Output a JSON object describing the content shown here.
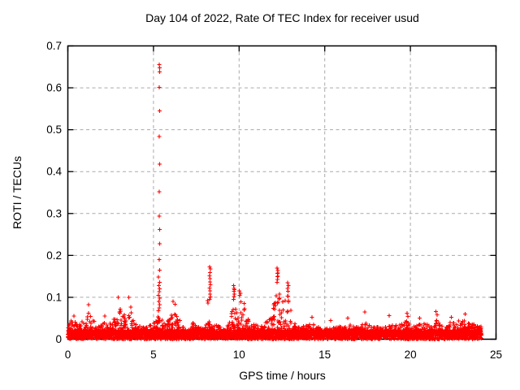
{
  "chart_data": {
    "type": "scatter",
    "title": "Day 104 of 2022, Rate Of TEC Index for receiver usud",
    "xlabel": "GPS time / hours",
    "ylabel": "ROTI / TECUs",
    "xlim": [
      0,
      25
    ],
    "ylim": [
      0,
      0.7
    ],
    "xticks": [
      0,
      5,
      10,
      15,
      20,
      25
    ],
    "yticks": [
      0,
      0.1,
      0.2,
      0.3,
      0.4,
      0.5,
      0.6,
      0.7
    ],
    "xtick_labels": [
      "0",
      "5",
      "10",
      "15",
      "20",
      "25"
    ],
    "ytick_labels": [
      "0",
      "0.1",
      "0.2",
      "0.3",
      "0.4",
      "0.5",
      "0.6",
      "0.7"
    ],
    "grid": true,
    "legend": "none",
    "marker": "plus",
    "marker_color": "#ff0000",
    "grid_color": "#aaaaaa",
    "axis_color": "#000000",
    "background_color": "#ffffff",
    "x_data_range": [
      0,
      24.15
    ],
    "band_envelope": [
      [
        0.0,
        0.035
      ],
      [
        0.3,
        0.05
      ],
      [
        0.6,
        0.032
      ],
      [
        0.9,
        0.045
      ],
      [
        1.1,
        0.06
      ],
      [
        1.25,
        0.078
      ],
      [
        1.45,
        0.055
      ],
      [
        1.7,
        0.03
      ],
      [
        2.0,
        0.035
      ],
      [
        2.15,
        0.05
      ],
      [
        2.4,
        0.032
      ],
      [
        2.7,
        0.06
      ],
      [
        2.95,
        0.095
      ],
      [
        3.15,
        0.07
      ],
      [
        3.35,
        0.06
      ],
      [
        3.55,
        0.095
      ],
      [
        3.75,
        0.07
      ],
      [
        3.95,
        0.04
      ],
      [
        4.3,
        0.028
      ],
      [
        4.7,
        0.03
      ],
      [
        5.0,
        0.04
      ],
      [
        5.2,
        0.055
      ],
      [
        5.45,
        0.05
      ],
      [
        5.7,
        0.035
      ],
      [
        5.95,
        0.05
      ],
      [
        6.2,
        0.075
      ],
      [
        6.45,
        0.055
      ],
      [
        6.7,
        0.032
      ],
      [
        7.0,
        0.025
      ],
      [
        7.3,
        0.04
      ],
      [
        7.6,
        0.03
      ],
      [
        8.0,
        0.032
      ],
      [
        8.3,
        0.045
      ],
      [
        8.6,
        0.035
      ],
      [
        9.0,
        0.028
      ],
      [
        9.4,
        0.04
      ],
      [
        9.65,
        0.08
      ],
      [
        9.85,
        0.1
      ],
      [
        10.1,
        0.11
      ],
      [
        10.35,
        0.08
      ],
      [
        10.6,
        0.05
      ],
      [
        10.9,
        0.035
      ],
      [
        11.3,
        0.03
      ],
      [
        11.7,
        0.045
      ],
      [
        12.0,
        0.09
      ],
      [
        12.2,
        0.13
      ],
      [
        12.45,
        0.1
      ],
      [
        12.65,
        0.09
      ],
      [
        12.85,
        0.11
      ],
      [
        13.05,
        0.06
      ],
      [
        13.3,
        0.04
      ],
      [
        13.6,
        0.03
      ],
      [
        14.0,
        0.035
      ],
      [
        14.3,
        0.045
      ],
      [
        14.7,
        0.03
      ],
      [
        15.1,
        0.025
      ],
      [
        15.5,
        0.03
      ],
      [
        16.0,
        0.032
      ],
      [
        16.5,
        0.035
      ],
      [
        17.0,
        0.03
      ],
      [
        17.35,
        0.042
      ],
      [
        17.7,
        0.03
      ],
      [
        18.1,
        0.035
      ],
      [
        18.5,
        0.03
      ],
      [
        18.9,
        0.035
      ],
      [
        19.3,
        0.032
      ],
      [
        19.75,
        0.045
      ],
      [
        20.1,
        0.03
      ],
      [
        20.5,
        0.035
      ],
      [
        20.9,
        0.04
      ],
      [
        21.4,
        0.05
      ],
      [
        21.8,
        0.035
      ],
      [
        22.2,
        0.04
      ],
      [
        22.6,
        0.042
      ],
      [
        23.0,
        0.048
      ],
      [
        23.4,
        0.038
      ],
      [
        23.8,
        0.035
      ],
      [
        24.15,
        0.03
      ]
    ],
    "spike_points": [
      [
        5.33,
        0.655
      ],
      [
        5.37,
        0.648
      ],
      [
        5.35,
        0.638
      ],
      [
        5.33,
        0.601
      ],
      [
        5.36,
        0.545
      ],
      [
        5.34,
        0.484
      ],
      [
        5.37,
        0.418
      ],
      [
        5.34,
        0.352
      ],
      [
        5.33,
        0.294
      ],
      [
        5.36,
        0.262
      ],
      [
        5.35,
        0.228
      ],
      [
        5.33,
        0.19
      ],
      [
        5.36,
        0.165
      ],
      [
        5.3,
        0.148
      ],
      [
        5.35,
        0.136
      ],
      [
        5.32,
        0.128
      ],
      [
        5.36,
        0.12
      ],
      [
        5.33,
        0.113
      ],
      [
        5.3,
        0.105
      ],
      [
        5.35,
        0.098
      ],
      [
        5.32,
        0.09
      ],
      [
        5.36,
        0.082
      ],
      [
        5.33,
        0.075
      ],
      [
        5.3,
        0.068
      ],
      [
        8.28,
        0.173
      ],
      [
        8.32,
        0.168
      ],
      [
        8.3,
        0.159
      ],
      [
        8.27,
        0.151
      ],
      [
        8.31,
        0.144
      ],
      [
        8.29,
        0.137
      ],
      [
        8.33,
        0.13
      ],
      [
        8.28,
        0.122
      ],
      [
        8.31,
        0.115
      ],
      [
        8.29,
        0.108
      ],
      [
        8.32,
        0.101
      ],
      [
        8.28,
        0.095
      ],
      [
        8.16,
        0.092
      ],
      [
        8.18,
        0.086
      ],
      [
        9.68,
        0.128
      ],
      [
        9.71,
        0.121
      ],
      [
        9.69,
        0.114
      ],
      [
        9.72,
        0.108
      ],
      [
        9.7,
        0.102
      ],
      [
        9.67,
        0.095
      ],
      [
        9.73,
        0.118
      ],
      [
        10.02,
        0.115
      ],
      [
        10.07,
        0.11
      ],
      [
        10.04,
        0.105
      ],
      [
        12.22,
        0.17
      ],
      [
        12.26,
        0.164
      ],
      [
        12.23,
        0.157
      ],
      [
        12.27,
        0.15
      ],
      [
        12.24,
        0.143
      ],
      [
        12.21,
        0.136
      ],
      [
        12.26,
        0.158
      ],
      [
        12.23,
        0.149
      ],
      [
        12.83,
        0.135
      ],
      [
        12.87,
        0.128
      ],
      [
        12.84,
        0.121
      ],
      [
        12.86,
        0.114
      ],
      [
        6.15,
        0.09
      ],
      [
        6.25,
        0.083
      ],
      [
        0.35,
        0.055
      ],
      [
        1.22,
        0.082
      ],
      [
        2.15,
        0.055
      ],
      [
        2.95,
        0.1
      ],
      [
        3.55,
        0.1
      ],
      [
        14.25,
        0.052
      ],
      [
        15.35,
        0.045
      ],
      [
        16.35,
        0.05
      ],
      [
        17.35,
        0.065
      ],
      [
        18.75,
        0.056
      ],
      [
        19.8,
        0.062
      ],
      [
        19.85,
        0.054
      ],
      [
        20.55,
        0.05
      ],
      [
        21.5,
        0.066
      ],
      [
        21.55,
        0.058
      ],
      [
        22.4,
        0.052
      ],
      [
        23.2,
        0.06
      ]
    ]
  }
}
